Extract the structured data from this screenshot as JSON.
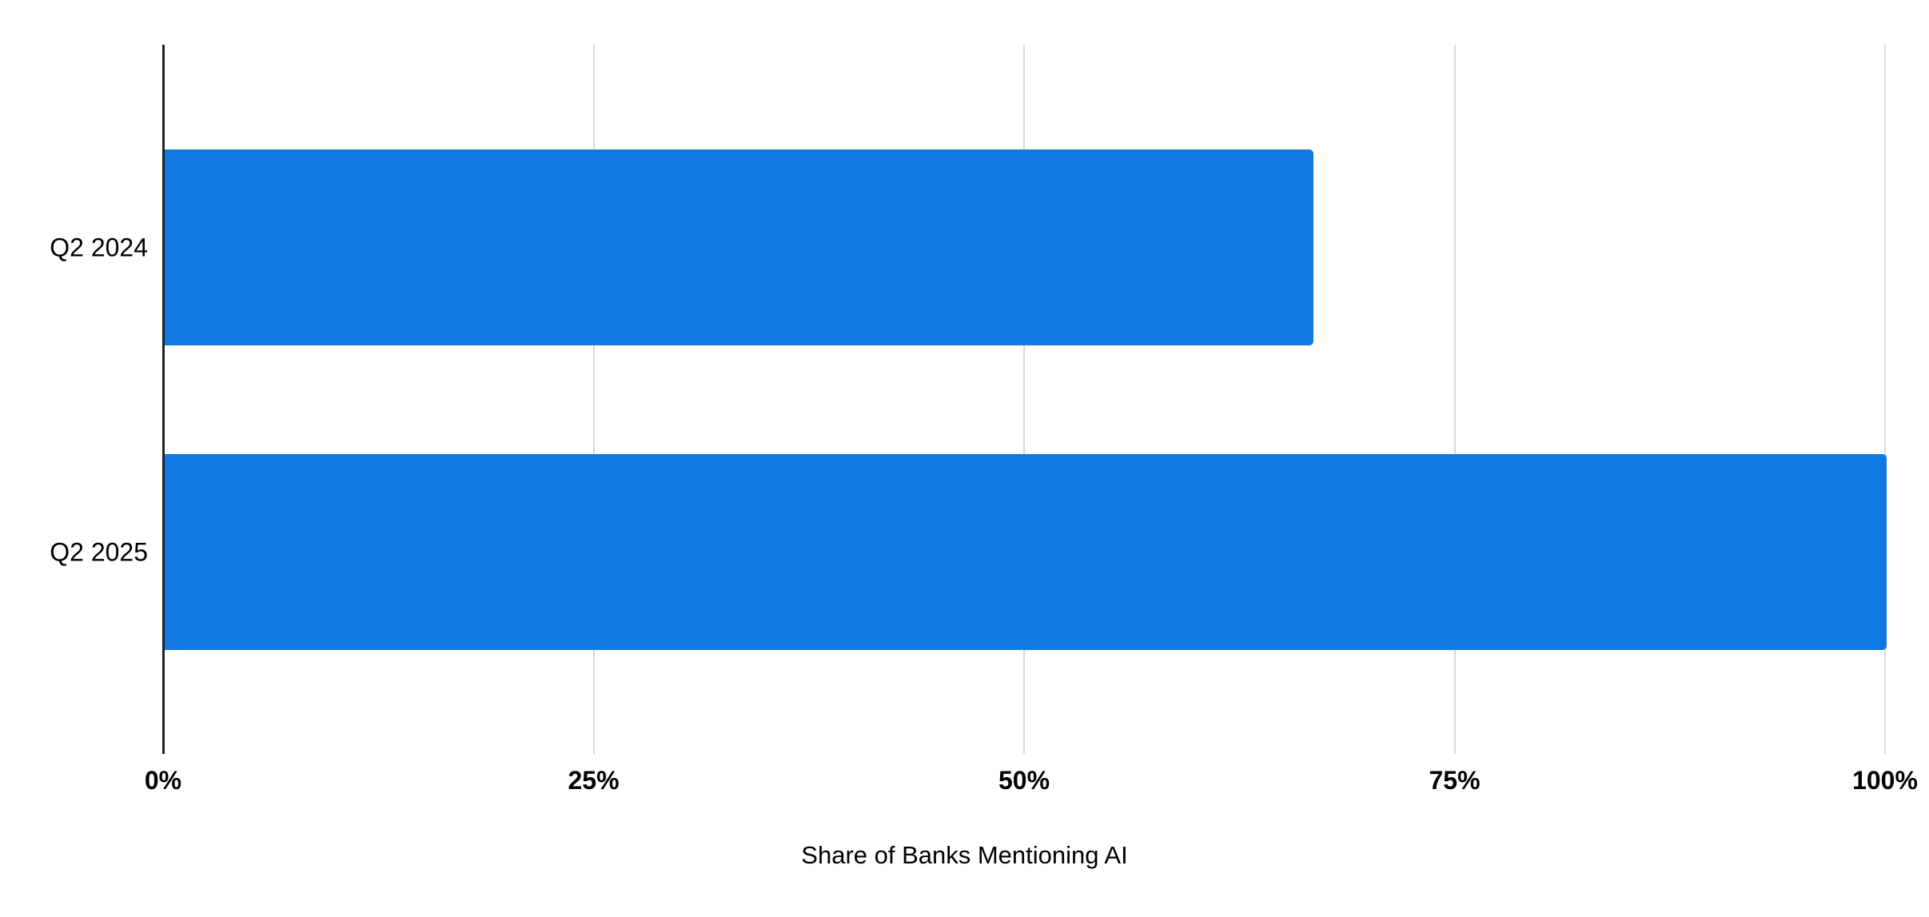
{
  "chart_data": {
    "type": "bar",
    "orientation": "horizontal",
    "title": "",
    "xlabel": "Share of Banks Mentioning AI",
    "ylabel": "",
    "categories": [
      "Q2 2024",
      "Q2 2025"
    ],
    "values": [
      66.7,
      100
    ],
    "value_unit": "%",
    "xlim": [
      0,
      100
    ],
    "x_ticks": [
      {
        "value": 0,
        "label": "0%"
      },
      {
        "value": 25,
        "label": "25%"
      },
      {
        "value": 50,
        "label": "50%"
      },
      {
        "value": 75,
        "label": "75%"
      },
      {
        "value": 100,
        "label": "100%"
      }
    ],
    "grid": true,
    "legend_position": "none",
    "colors": {
      "bar": "#1178e3",
      "gridline": "#d9d9d9",
      "axis_line": "#212121",
      "text": "#000000",
      "background": "#ffffff"
    }
  }
}
